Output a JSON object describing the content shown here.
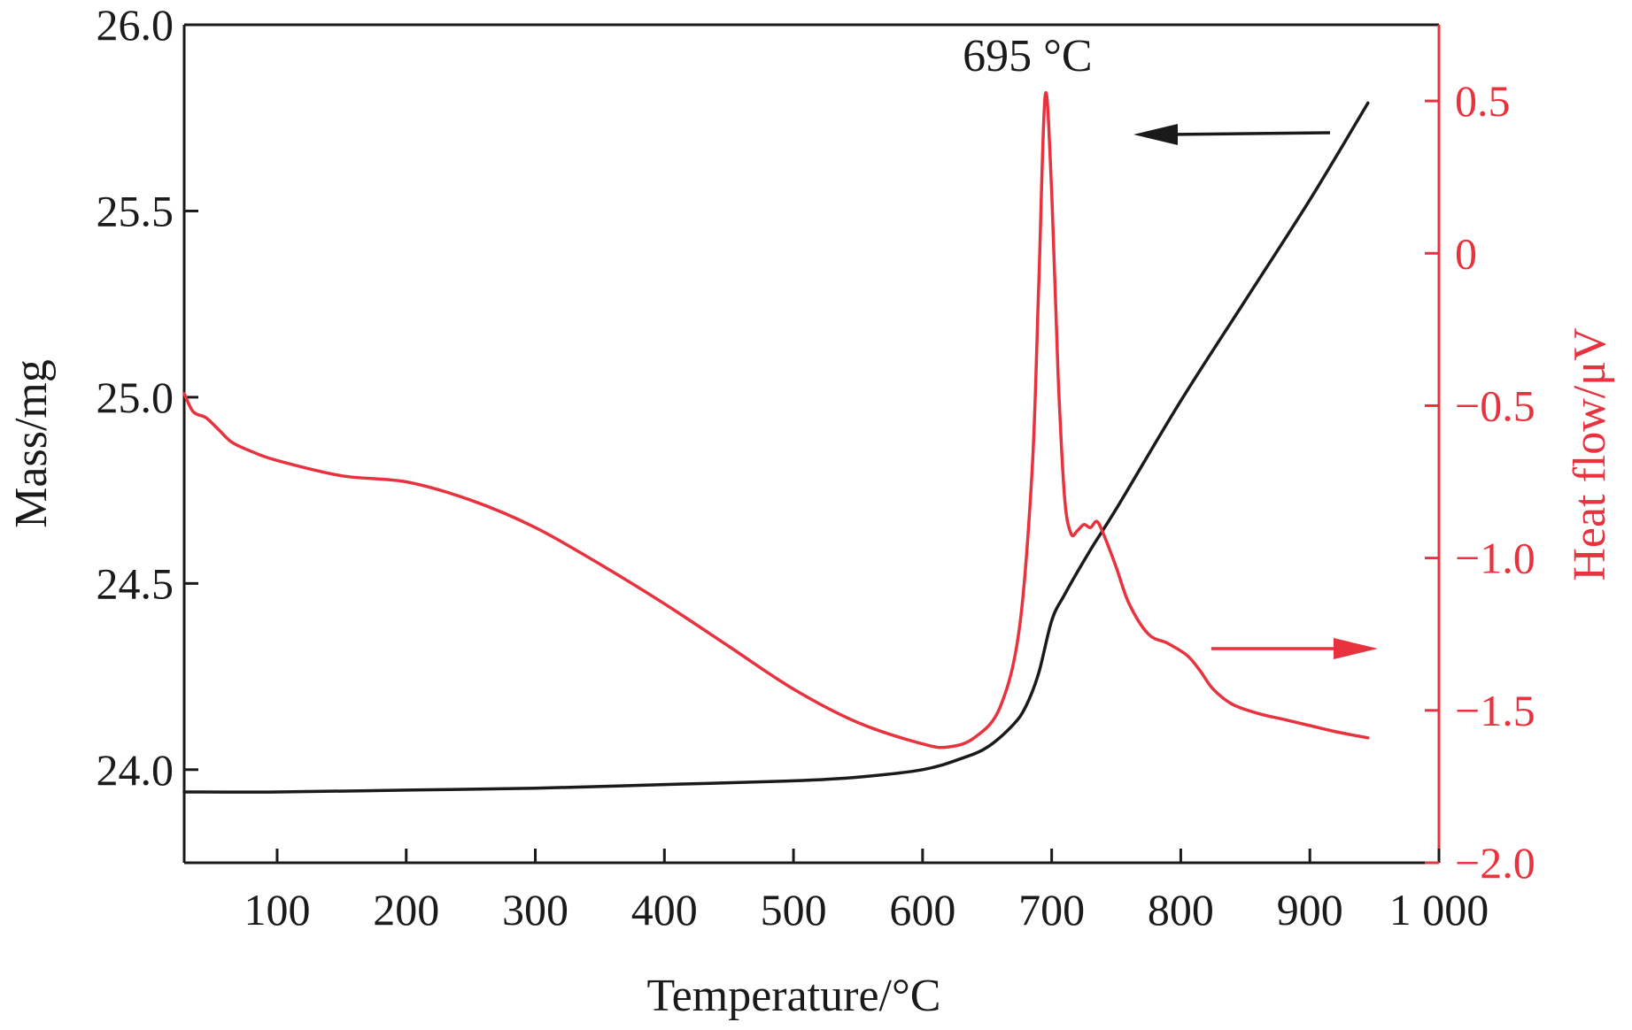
{
  "colors": {
    "mass": "#1a1a1a",
    "heat": "#e8323e",
    "axis_left": "#1a1a1a",
    "axis_right": "#e8323e"
  },
  "chart_data": {
    "type": "line",
    "xlabel": "Temperature/°C",
    "ylabel_left": "Mass/mg",
    "ylabel_right": "Heat flow/μV",
    "xlim": [
      28,
      1000
    ],
    "ylim_left": [
      23.75,
      26.0
    ],
    "ylim_right": [
      -2.0,
      0.75
    ],
    "x_ticks": [
      100,
      200,
      300,
      400,
      500,
      600,
      700,
      800,
      900,
      1000
    ],
    "x_tick_labels": [
      "100",
      "200",
      "300",
      "400",
      "500",
      "600",
      "700",
      "800",
      "900",
      "1 000"
    ],
    "y_left_ticks": [
      24.0,
      24.5,
      25.0,
      25.5,
      26.0
    ],
    "y_left_tick_labels": [
      "24.0",
      "24.5",
      "25.0",
      "25.5",
      "26.0"
    ],
    "y_right_ticks": [
      -2.0,
      -1.5,
      -1.0,
      -0.5,
      0,
      0.5
    ],
    "y_right_tick_labels": [
      "−2.0",
      "−1.5",
      "−1.0",
      "−0.5",
      "0",
      "0.5"
    ],
    "grid": false,
    "annotations": [
      {
        "text": "695 °C",
        "x": 695,
        "axis": "right",
        "y": 0.52
      }
    ],
    "series": [
      {
        "axis": "left",
        "color": "#1a1a1a",
        "x": [
          28,
          100,
          200,
          300,
          400,
          500,
          550,
          600,
          630,
          650,
          670,
          680,
          690,
          700,
          710,
          730,
          750,
          800,
          850,
          900,
          945
        ],
        "y": [
          23.94,
          23.94,
          23.945,
          23.95,
          23.96,
          23.97,
          23.98,
          24.0,
          24.03,
          24.06,
          24.12,
          24.17,
          24.26,
          24.4,
          24.47,
          24.59,
          24.7,
          24.99,
          25.26,
          25.53,
          25.79
        ]
      },
      {
        "axis": "right",
        "color": "#e8323e",
        "x": [
          28,
          35,
          45,
          55,
          65,
          80,
          100,
          150,
          200,
          250,
          300,
          350,
          400,
          450,
          500,
          550,
          600,
          620,
          640,
          660,
          675,
          685,
          690,
          695,
          700,
          705,
          710,
          715,
          720,
          725,
          730,
          735,
          740,
          750,
          760,
          775,
          790,
          805,
          815,
          825,
          840,
          860,
          880,
          900,
          920,
          945
        ],
        "y": [
          -0.46,
          -0.52,
          -0.54,
          -0.58,
          -0.62,
          -0.65,
          -0.68,
          -0.73,
          -0.75,
          -0.81,
          -0.9,
          -1.02,
          -1.15,
          -1.29,
          -1.43,
          -1.54,
          -1.61,
          -1.62,
          -1.59,
          -1.49,
          -1.23,
          -0.7,
          -0.1,
          0.52,
          0.2,
          -0.4,
          -0.8,
          -0.92,
          -0.91,
          -0.89,
          -0.9,
          -0.88,
          -0.92,
          -1.03,
          -1.15,
          -1.25,
          -1.28,
          -1.32,
          -1.37,
          -1.43,
          -1.48,
          -1.51,
          -1.53,
          -1.55,
          -1.57,
          -1.59
        ]
      }
    ]
  }
}
